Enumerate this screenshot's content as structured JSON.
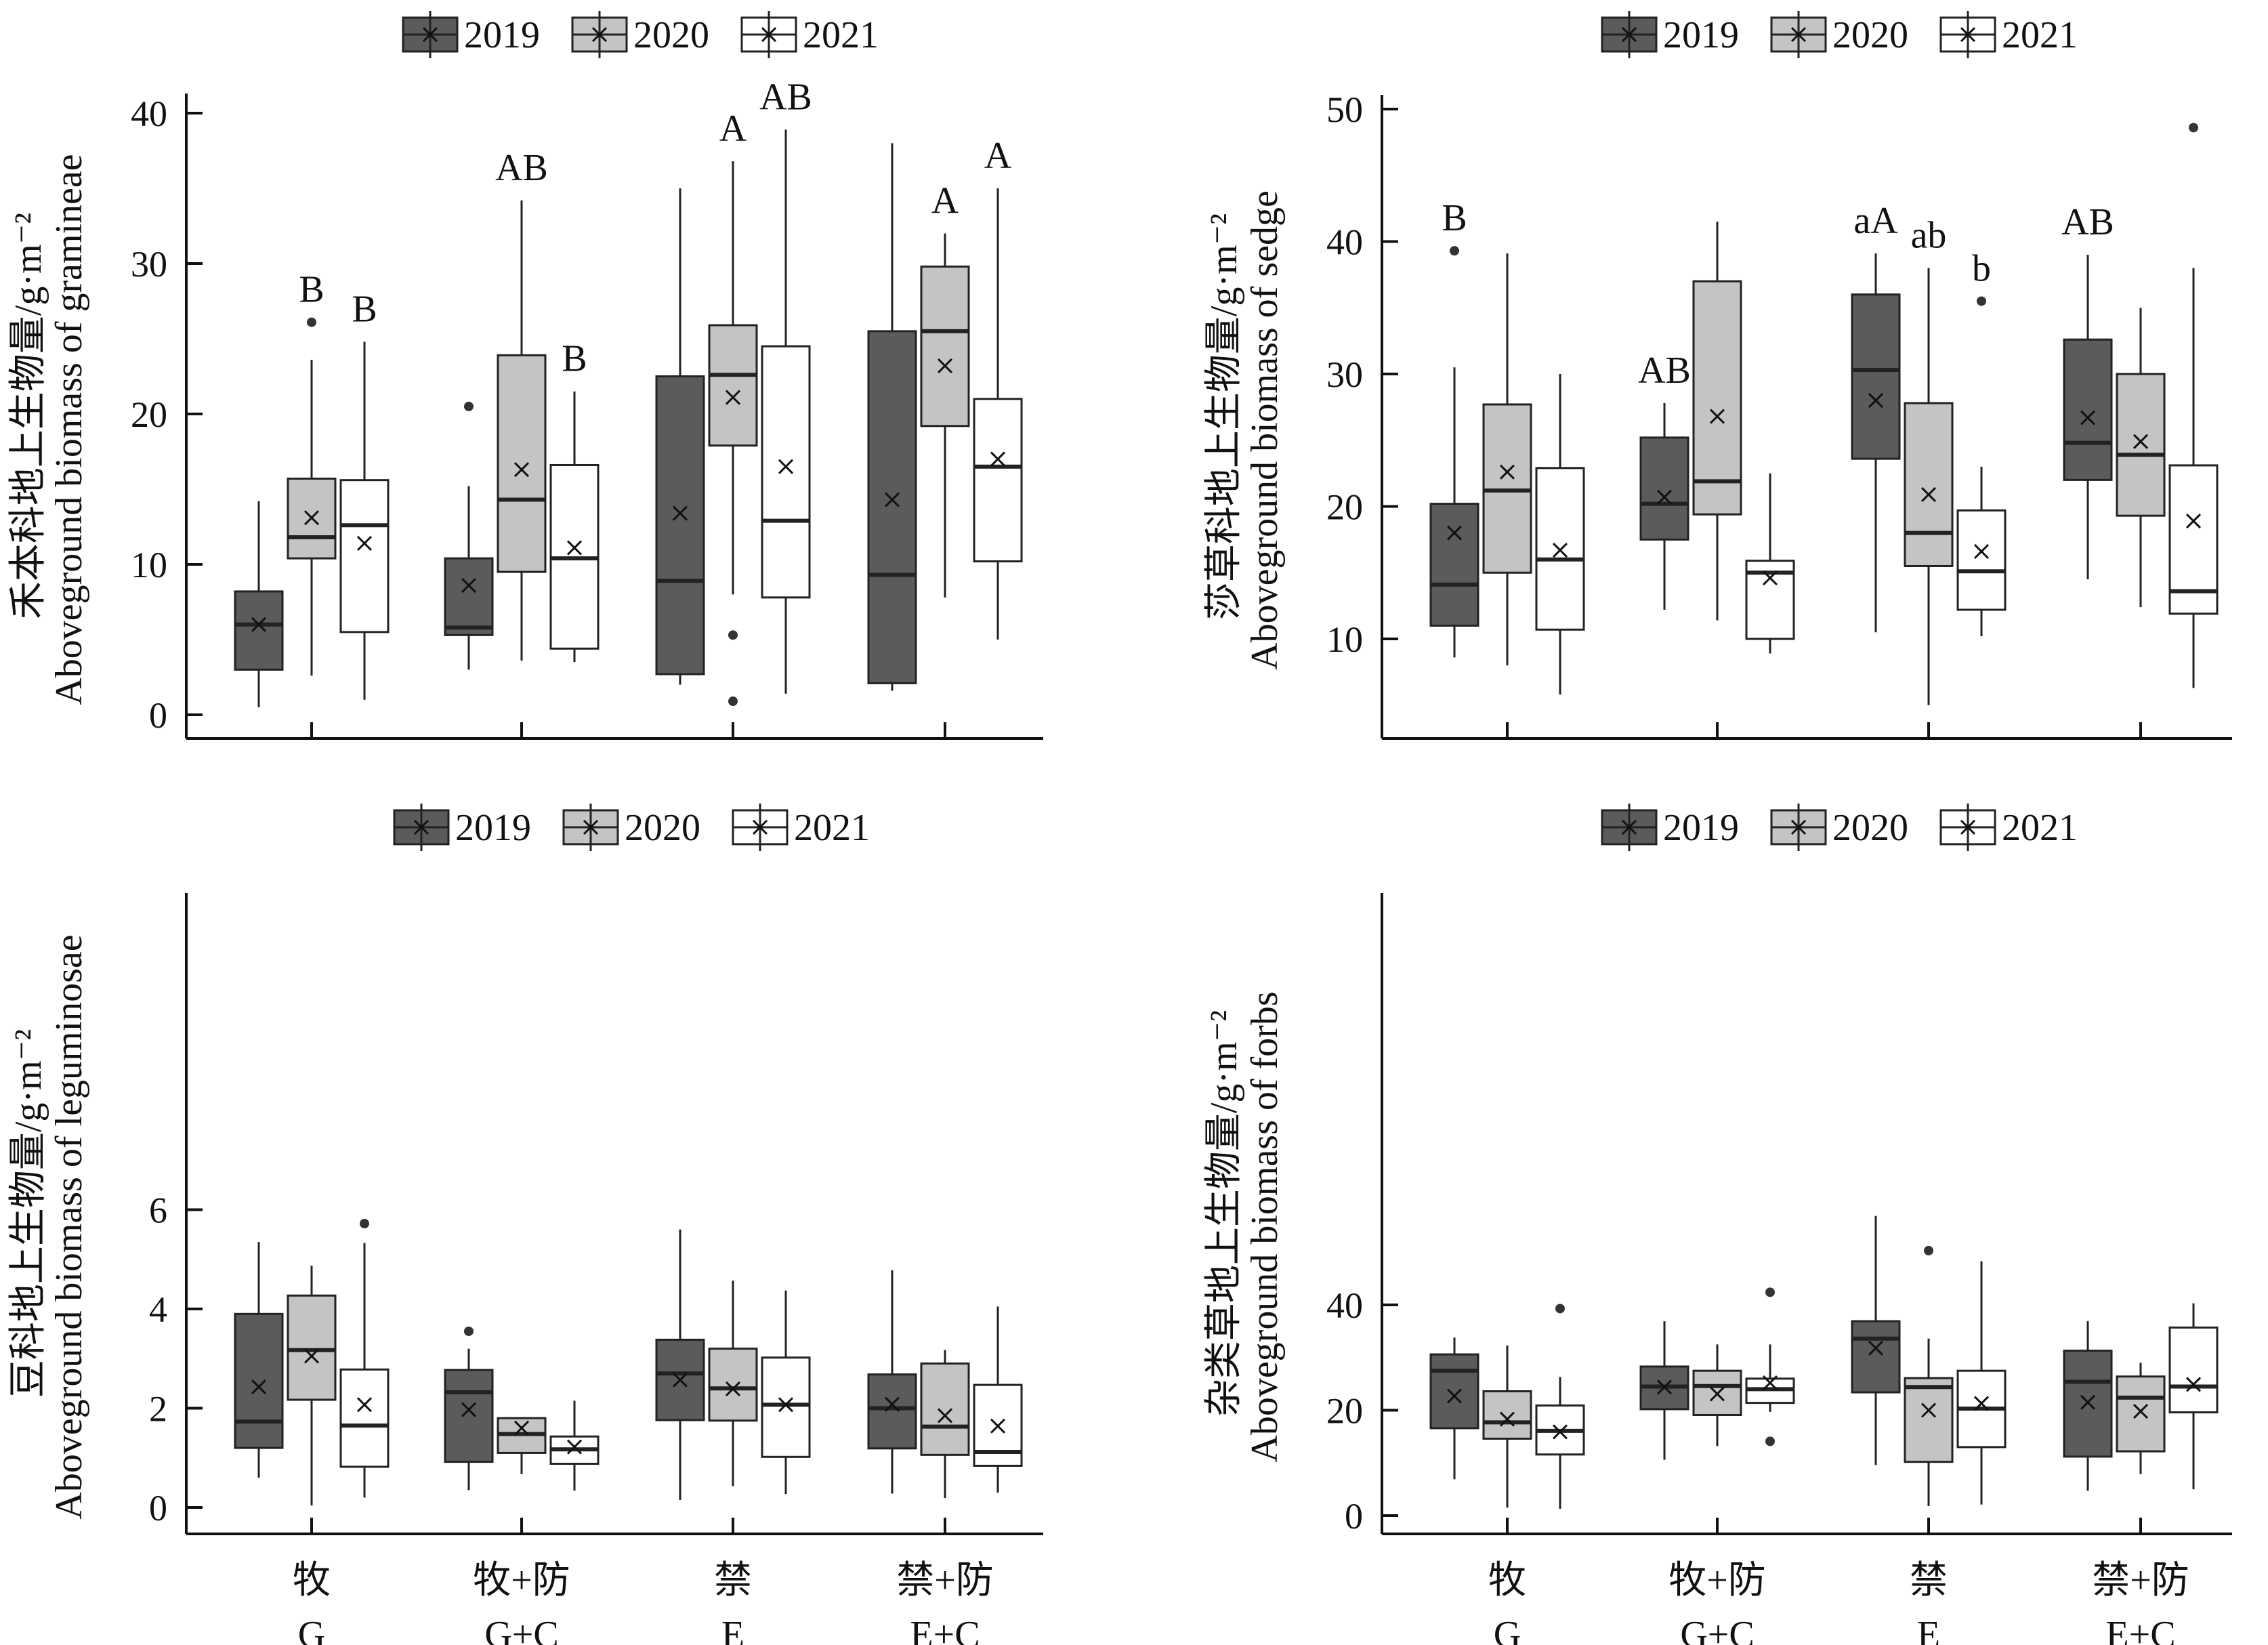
{
  "legend_labels": [
    "2019",
    "2020",
    "2021"
  ],
  "colors": {
    "y2019": "#5b5b5b",
    "y2020": "#c4c4c4",
    "y2021": "#ffffff",
    "stroke": "#222222"
  },
  "chart_data": [
    {
      "id": "gramineae",
      "type": "box",
      "ylabel_cn": "禾本科地上生物量/g·m⁻²",
      "ylabel_en": "Aboveground biomass of gramineae",
      "ylim": [
        -2,
        41
      ],
      "yticks": [
        0,
        10,
        20,
        30,
        40
      ],
      "groups": [
        {
          "cn": "牧",
          "en": "G"
        },
        {
          "cn": "牧+防",
          "en": "G+C"
        },
        {
          "cn": "禁",
          "en": "E"
        },
        {
          "cn": "禁+防",
          "en": "E+C"
        }
      ],
      "series": [
        {
          "name": "2019",
          "boxes": [
            {
              "min": 0.5,
              "q1": 3,
              "median": 6,
              "q3": 8.2,
              "max": 14.2,
              "mean": 6,
              "outliers": [],
              "label": ""
            },
            {
              "min": 3,
              "q1": 5.3,
              "median": 5.8,
              "q3": 10.4,
              "max": 15.2,
              "mean": 8.6,
              "outliers": [
                20.5
              ],
              "label": ""
            },
            {
              "min": 2,
              "q1": 2.7,
              "median": 8.9,
              "q3": 22.5,
              "max": 35,
              "mean": 13.4,
              "outliers": [],
              "label": ""
            },
            {
              "min": 1.6,
              "q1": 2.1,
              "median": 9.3,
              "q3": 25.5,
              "max": 38,
              "mean": 14.3,
              "outliers": [],
              "label": ""
            }
          ]
        },
        {
          "name": "2020",
          "boxes": [
            {
              "min": 2.6,
              "q1": 10.4,
              "median": 11.8,
              "q3": 15.7,
              "max": 23.6,
              "mean": 13.1,
              "outliers": [
                26.1
              ],
              "label": "B"
            },
            {
              "min": 3.6,
              "q1": 9.5,
              "median": 14.3,
              "q3": 23.9,
              "max": 34.2,
              "mean": 16.3,
              "outliers": [],
              "label": "AB"
            },
            {
              "min": 8,
              "q1": 17.9,
              "median": 22.6,
              "q3": 25.9,
              "max": 36.8,
              "mean": 21.1,
              "outliers": [
                5.3,
                0.9
              ],
              "label": "A"
            },
            {
              "min": 7.8,
              "q1": 19.2,
              "median": 25.5,
              "q3": 29.8,
              "max": 32,
              "mean": 23.2,
              "outliers": [],
              "label": "A"
            }
          ]
        },
        {
          "name": "2021",
          "boxes": [
            {
              "min": 1,
              "q1": 5.5,
              "median": 12.6,
              "q3": 15.6,
              "max": 24.8,
              "mean": 11.4,
              "outliers": [],
              "label": "B"
            },
            {
              "min": 3.5,
              "q1": 4.4,
              "median": 10.4,
              "q3": 16.6,
              "max": 21.5,
              "mean": 11.1,
              "outliers": [],
              "label": "B"
            },
            {
              "min": 1.4,
              "q1": 7.8,
              "median": 12.9,
              "q3": 24.5,
              "max": 38.9,
              "mean": 16.5,
              "outliers": [],
              "label": "AB"
            },
            {
              "min": 5,
              "q1": 10.2,
              "median": 16.5,
              "q3": 21,
              "max": 35,
              "mean": 17,
              "outliers": [],
              "label": "A"
            }
          ]
        }
      ]
    },
    {
      "id": "sedge",
      "type": "box",
      "ylabel_cn": "莎草科地上生物量/g·m⁻²",
      "ylabel_en": "Aboveground biomass of sedge",
      "ylim": [
        3,
        51
      ],
      "yticks": [
        10,
        20,
        30,
        40,
        50
      ],
      "groups": [
        {
          "cn": "牧",
          "en": "G"
        },
        {
          "cn": "牧+防",
          "en": "G+C"
        },
        {
          "cn": "禁",
          "en": "E"
        },
        {
          "cn": "禁+防",
          "en": "E+C"
        }
      ],
      "series": [
        {
          "name": "2019",
          "boxes": [
            {
              "min": 8.6,
              "q1": 11,
              "median": 14.1,
              "q3": 20.2,
              "max": 30.5,
              "mean": 18,
              "outliers": [
                39.3
              ],
              "label": "B"
            },
            {
              "min": 12.2,
              "q1": 17.5,
              "median": 20.2,
              "q3": 25.2,
              "max": 27.8,
              "mean": 20.7,
              "outliers": [],
              "label": "AB"
            },
            {
              "min": 10.5,
              "q1": 23.6,
              "median": 30.3,
              "q3": 36,
              "max": 39.1,
              "mean": 28,
              "outliers": [],
              "label": "aA"
            },
            {
              "min": 14.5,
              "q1": 22,
              "median": 24.8,
              "q3": 32.6,
              "max": 39,
              "mean": 26.7,
              "outliers": [],
              "label": "AB"
            }
          ]
        },
        {
          "name": "2020",
          "boxes": [
            {
              "min": 8,
              "q1": 15,
              "median": 21.2,
              "q3": 27.7,
              "max": 39.1,
              "mean": 22.6,
              "outliers": [],
              "label": ""
            },
            {
              "min": 11.4,
              "q1": 19.4,
              "median": 21.9,
              "q3": 37,
              "max": 41.5,
              "mean": 26.8,
              "outliers": [],
              "label": ""
            },
            {
              "min": 5,
              "q1": 15.5,
              "median": 18,
              "q3": 27.8,
              "max": 38,
              "mean": 20.9,
              "outliers": [],
              "label": "ab"
            },
            {
              "min": 12.4,
              "q1": 19.3,
              "median": 23.9,
              "q3": 30,
              "max": 35,
              "mean": 24.9,
              "outliers": [],
              "label": ""
            }
          ]
        },
        {
          "name": "2021",
          "boxes": [
            {
              "min": 5.8,
              "q1": 10.7,
              "median": 16,
              "q3": 22.9,
              "max": 30,
              "mean": 16.7,
              "outliers": [],
              "label": ""
            },
            {
              "min": 8.9,
              "q1": 10,
              "median": 15,
              "q3": 15.9,
              "max": 22.5,
              "mean": 14.6,
              "outliers": [],
              "label": ""
            },
            {
              "min": 10.2,
              "q1": 12.2,
              "median": 15.1,
              "q3": 19.7,
              "max": 23,
              "mean": 16.6,
              "outliers": [
                35.5
              ],
              "label": "b"
            },
            {
              "min": 6.3,
              "q1": 11.9,
              "median": 13.6,
              "q3": 23.1,
              "max": 38,
              "mean": 18.9,
              "outliers": [
                48.6
              ],
              "label": ""
            }
          ]
        }
      ]
    },
    {
      "id": "leguminosae",
      "type": "box",
      "ylabel_cn": "豆科地上生物量/g·m⁻²",
      "ylabel_en": "Aboveground biomass of leguminosae",
      "ylim": [
        -0.25,
        6.1
      ],
      "yticks": [
        0,
        2,
        4,
        6
      ],
      "groups": [
        {
          "cn": "牧",
          "en": "G"
        },
        {
          "cn": "牧+防",
          "en": "G+C"
        },
        {
          "cn": "禁",
          "en": "E"
        },
        {
          "cn": "禁+防",
          "en": "E+C"
        }
      ],
      "series": [
        {
          "name": "2019",
          "boxes": [
            {
              "min": 0.6,
              "q1": 1.2,
              "median": 1.73,
              "q3": 3.9,
              "max": 5.35,
              "mean": 2.43,
              "outliers": [],
              "label": ""
            },
            {
              "min": 0.35,
              "q1": 0.92,
              "median": 2.32,
              "q3": 2.77,
              "max": 3.2,
              "mean": 1.97,
              "outliers": [
                3.55
              ],
              "label": ""
            },
            {
              "min": 0.15,
              "q1": 1.76,
              "median": 2.7,
              "q3": 3.38,
              "max": 5.6,
              "mean": 2.57,
              "outliers": [],
              "label": ""
            },
            {
              "min": 0.28,
              "q1": 1.19,
              "median": 2,
              "q3": 2.68,
              "max": 4.78,
              "mean": 2.08,
              "outliers": [],
              "label": ""
            }
          ]
        },
        {
          "name": "2020",
          "boxes": [
            {
              "min": 0.04,
              "q1": 2.17,
              "median": 3.17,
              "q3": 4.27,
              "max": 4.87,
              "mean": 3.05,
              "outliers": [],
              "label": ""
            },
            {
              "min": 0.67,
              "q1": 1.1,
              "median": 1.48,
              "q3": 1.8,
              "max": 1.8,
              "mean": 1.6,
              "outliers": [],
              "label": ""
            },
            {
              "min": 0.43,
              "q1": 1.75,
              "median": 2.4,
              "q3": 3.2,
              "max": 4.57,
              "mean": 2.39,
              "outliers": [],
              "label": ""
            },
            {
              "min": 0.19,
              "q1": 1.06,
              "median": 1.63,
              "q3": 2.9,
              "max": 3.17,
              "mean": 1.85,
              "outliers": [],
              "label": ""
            }
          ]
        },
        {
          "name": "2021",
          "boxes": [
            {
              "min": 0.2,
              "q1": 0.82,
              "median": 1.65,
              "q3": 2.78,
              "max": 5.33,
              "mean": 2.07,
              "outliers": [
                5.72
              ],
              "label": ""
            },
            {
              "min": 0.34,
              "q1": 0.88,
              "median": 1.17,
              "q3": 1.43,
              "max": 2.15,
              "mean": 1.22,
              "outliers": [],
              "label": ""
            },
            {
              "min": 0.27,
              "q1": 1.02,
              "median": 2.07,
              "q3": 3.02,
              "max": 4.37,
              "mean": 2.07,
              "outliers": [],
              "label": ""
            },
            {
              "min": 0.3,
              "q1": 0.84,
              "median": 1.12,
              "q3": 2.47,
              "max": 4.05,
              "mean": 1.64,
              "outliers": [],
              "label": ""
            }
          ]
        }
      ]
    },
    {
      "id": "forbs",
      "type": "box",
      "ylabel_cn": "杂类草地上生物量/g·m⁻²",
      "ylabel_en": "Aboveground biomass of forbs",
      "ylim": [
        -2.5,
        59
      ],
      "yticks": [
        0,
        20,
        40
      ],
      "groups": [
        {
          "cn": "牧",
          "en": "G"
        },
        {
          "cn": "牧+防",
          "en": "G+C"
        },
        {
          "cn": "禁",
          "en": "E"
        },
        {
          "cn": "禁+防",
          "en": "E+C"
        }
      ],
      "series": [
        {
          "name": "2019",
          "boxes": [
            {
              "min": 6.9,
              "q1": 16.6,
              "median": 27.5,
              "q3": 30.6,
              "max": 33.8,
              "mean": 22.7,
              "outliers": [],
              "label": ""
            },
            {
              "min": 10.6,
              "q1": 20.2,
              "median": 24.5,
              "q3": 28.3,
              "max": 36.9,
              "mean": 24.4,
              "outliers": [],
              "label": ""
            },
            {
              "min": 9.6,
              "q1": 23.4,
              "median": 33.6,
              "q3": 36.9,
              "max": 56.9,
              "mean": 31.8,
              "outliers": [],
              "label": ""
            },
            {
              "min": 4.7,
              "q1": 11.2,
              "median": 25.4,
              "q3": 31.3,
              "max": 36.9,
              "mean": 21.5,
              "outliers": [],
              "label": ""
            }
          ]
        },
        {
          "name": "2020",
          "boxes": [
            {
              "min": 1.5,
              "q1": 14.6,
              "median": 17.7,
              "q3": 23.6,
              "max": 32.3,
              "mean": 18.3,
              "outliers": [],
              "label": ""
            },
            {
              "min": 13.2,
              "q1": 19.1,
              "median": 24.6,
              "q3": 27.5,
              "max": 32.5,
              "mean": 23.1,
              "outliers": [],
              "label": ""
            },
            {
              "min": 1.8,
              "q1": 10.2,
              "median": 24.4,
              "q3": 26.1,
              "max": 33.6,
              "mean": 20,
              "outliers": [
                50.3
              ],
              "label": ""
            },
            {
              "min": 7.9,
              "q1": 12.2,
              "median": 22.4,
              "q3": 26.4,
              "max": 29,
              "mean": 19.8,
              "outliers": [],
              "label": ""
            }
          ]
        },
        {
          "name": "2021",
          "boxes": [
            {
              "min": 1.3,
              "q1": 11.6,
              "median": 16.1,
              "q3": 20.9,
              "max": 26.3,
              "mean": 15.9,
              "outliers": [
                39.3
              ],
              "label": ""
            },
            {
              "min": 19.7,
              "q1": 21.4,
              "median": 24,
              "q3": 26,
              "max": 32.5,
              "mean": 25.2,
              "outliers": [
                42.4,
                14.1
              ],
              "label": ""
            },
            {
              "min": 2.1,
              "q1": 13,
              "median": 20.3,
              "q3": 27.5,
              "max": 48.3,
              "mean": 21.3,
              "outliers": [],
              "label": ""
            },
            {
              "min": 5,
              "q1": 19.6,
              "median": 24.5,
              "q3": 35.7,
              "max": 40.3,
              "mean": 24.9,
              "outliers": [],
              "label": ""
            }
          ]
        }
      ]
    }
  ]
}
